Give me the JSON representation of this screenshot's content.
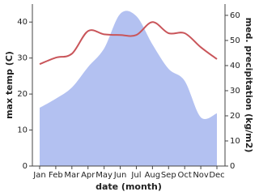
{
  "chart_data": {
    "type": "line-area",
    "x_label": "date (month)",
    "y_label": "max temp (C)",
    "y2_label": "med. precipitation (kg/m2)",
    "categories": [
      "Jan",
      "Feb",
      "Mar",
      "Apr",
      "May",
      "Jun",
      "Jul",
      "Aug",
      "Sep",
      "Oct",
      "Nov",
      "Dec"
    ],
    "ylim": [
      0,
      45
    ],
    "yticks": [
      0,
      10,
      20,
      30,
      40
    ],
    "y2lim": [
      0,
      64.5
    ],
    "y2ticks": [
      0,
      10,
      20,
      30,
      40,
      50,
      60
    ],
    "series": [
      {
        "name": "max temp (C)",
        "kind": "line",
        "color": "#c9555a",
        "values": [
          28.3,
          30.1,
          31.2,
          37.5,
          36.6,
          36.4,
          36.4,
          40,
          36.9,
          36.9,
          33,
          29.7
        ]
      },
      {
        "name": "med. precipitation (kg/m2)",
        "kind": "area",
        "axis": "y2",
        "color": "#b3c1f1",
        "values": [
          23.2,
          26.8,
          31.3,
          39.4,
          46.8,
          60.6,
          59.7,
          48.4,
          38.7,
          33.9,
          19.4,
          21
        ]
      }
    ]
  }
}
